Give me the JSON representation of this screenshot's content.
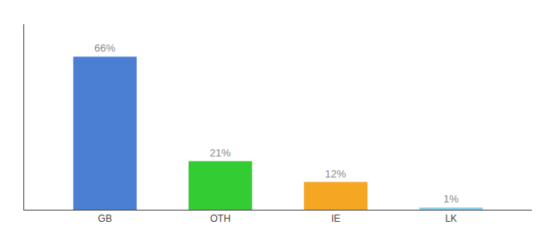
{
  "chart_data": {
    "type": "bar",
    "categories": [
      "GB",
      "OTH",
      "IE",
      "LK"
    ],
    "values": [
      66,
      21,
      12,
      1
    ],
    "value_labels": [
      "66%",
      "21%",
      "12%",
      "1%"
    ],
    "colors": [
      "#4a7fd4",
      "#33cc33",
      "#f5a623",
      "#87ceeb"
    ],
    "ylim": [
      0,
      80
    ],
    "data_labels": true,
    "tick_labels": "x",
    "grid": false
  }
}
